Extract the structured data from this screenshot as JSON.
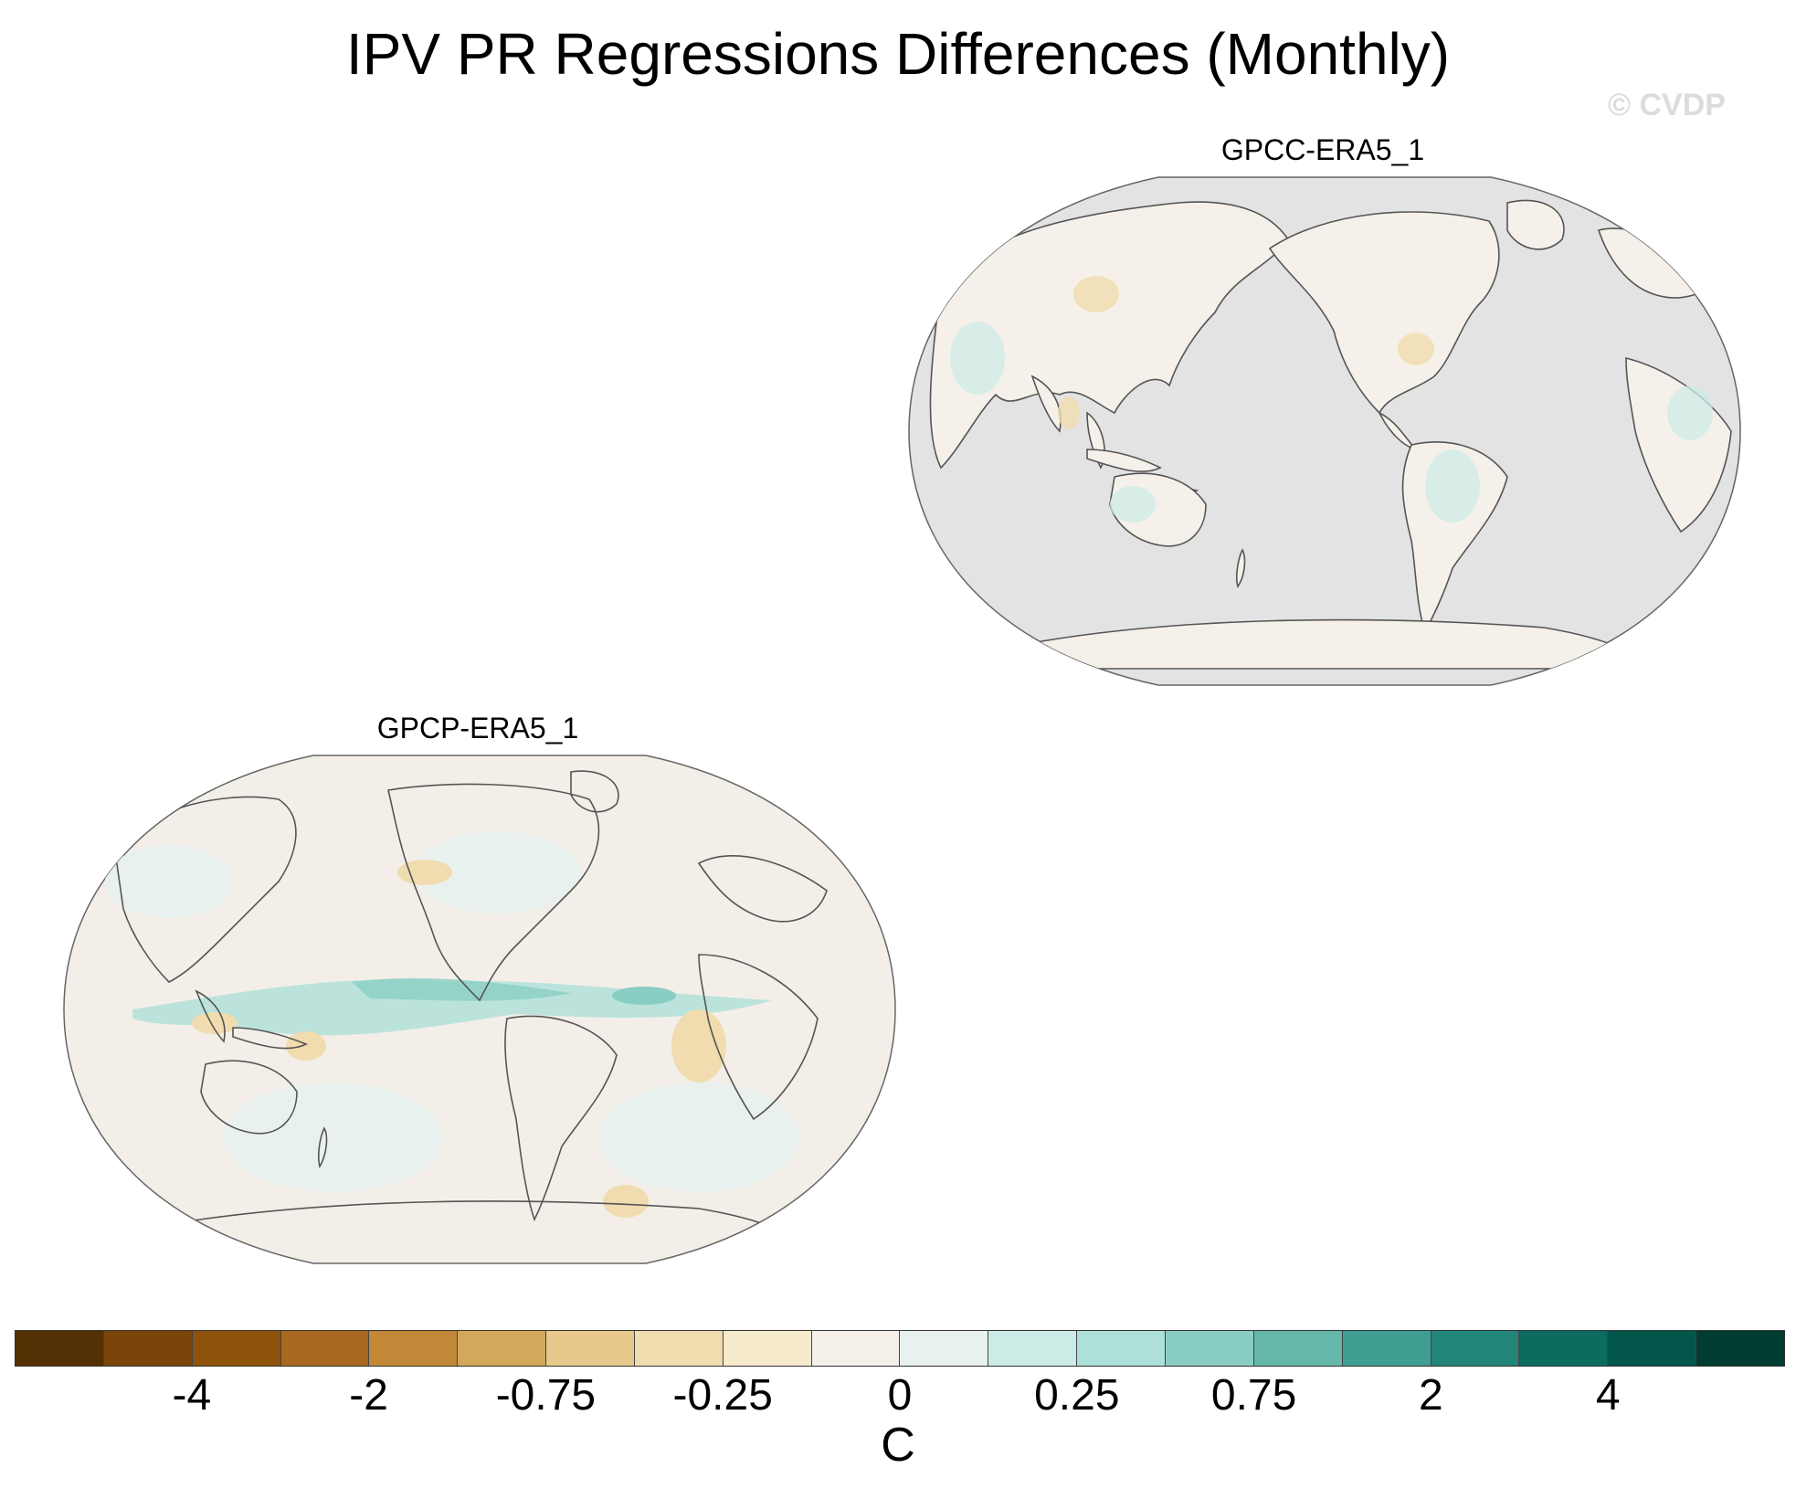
{
  "title": "IPV PR Regressions Differences (Monthly)",
  "watermark": "© CVDP",
  "panels": [
    {
      "label": "GPCC-ERA5_1",
      "background": "#e3e3e3",
      "ocean_masked": true
    },
    {
      "label": "GPCP-ERA5_1",
      "background": "#f3efe8",
      "ocean_masked": false
    }
  ],
  "colorbar": {
    "units": "C",
    "colors": [
      "#543005",
      "#7a4508",
      "#8f520b",
      "#a8681f",
      "#c28838",
      "#d4a85a",
      "#e6c98b",
      "#f0dcae",
      "#f6ebcc",
      "#f5f1ea",
      "#e9f1ef",
      "#cdebe6",
      "#ade0d8",
      "#8acec3",
      "#64b8aa",
      "#3f9e92",
      "#22857a",
      "#0b6c60",
      "#02564a",
      "#003c30"
    ],
    "tick_labels": [
      "-4",
      "-2",
      "-0.75",
      "-0.25",
      "0",
      "0.25",
      "0.75",
      "2",
      "4"
    ]
  },
  "colors": {
    "land_outline": "#555555",
    "frame": "#444444"
  }
}
